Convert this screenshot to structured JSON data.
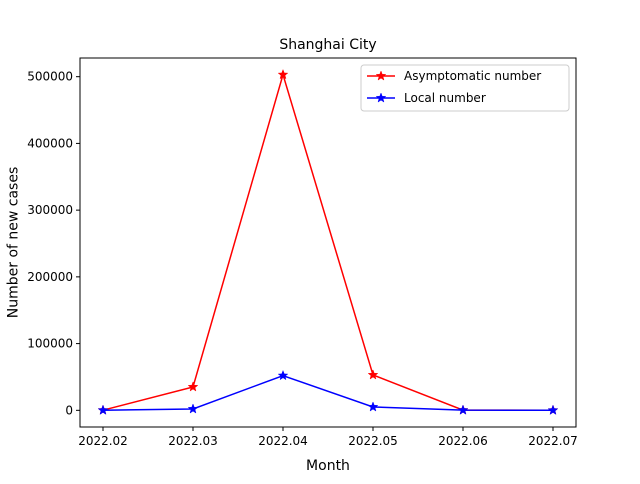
{
  "chart_data": {
    "type": "line",
    "title": "Shanghai City",
    "xlabel": "Month",
    "ylabel": "Number of new cases",
    "categories": [
      "2022.02",
      "2022.03",
      "2022.04",
      "2022.05",
      "2022.06",
      "2022.07"
    ],
    "series": [
      {
        "name": "Asymptomatic number",
        "color": "#ff0000",
        "marker": "star",
        "values": [
          200,
          35000,
          503000,
          53000,
          300,
          100
        ]
      },
      {
        "name": "Local number",
        "color": "#0000ff",
        "marker": "star",
        "values": [
          100,
          2000,
          52000,
          5000,
          200,
          50
        ]
      }
    ],
    "ylim": [
      -25000,
      528000
    ],
    "yticks": [
      "0",
      "100000",
      "200000",
      "300000",
      "400000",
      "500000"
    ],
    "grid": false,
    "legend_position": "top-right"
  }
}
